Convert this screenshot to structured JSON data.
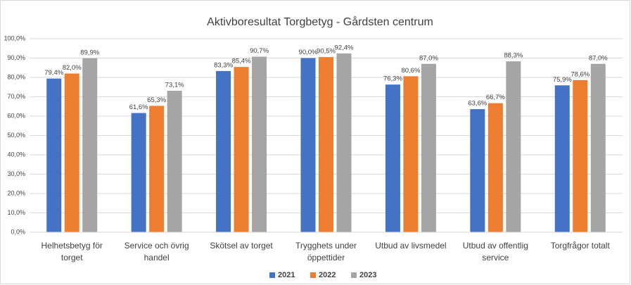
{
  "chart_data": {
    "type": "bar",
    "title": "Aktivboresultat Torgbetyg - Gårdsten centrum",
    "categories": [
      [
        "Helhetsbetyg för",
        "torget"
      ],
      [
        "Service och övrig",
        "handel"
      ],
      [
        "Skötsel av torget"
      ],
      [
        "Trygghets under",
        "öppettider"
      ],
      [
        "Utbud av livsmedel"
      ],
      [
        "Utbud av offentlig",
        "service"
      ],
      [
        "Torgfrågor totalt"
      ]
    ],
    "series": [
      {
        "name": "2021",
        "color": "#4472c4",
        "values": [
          79.4,
          61.6,
          83.3,
          90.0,
          76.3,
          63.6,
          75.9
        ],
        "value_labels": [
          "79,4%",
          "61,6%",
          "83,3%",
          "90,0%",
          "76,3%",
          "63,6%",
          "75,9%"
        ]
      },
      {
        "name": "2022",
        "color": "#ed7d31",
        "values": [
          82.0,
          65.3,
          85.4,
          90.5,
          80.6,
          66.7,
          78.6
        ],
        "value_labels": [
          "82,0%",
          "65,3%",
          "85,4%",
          "90,5%",
          "80,6%",
          "66,7%",
          "78,6%"
        ]
      },
      {
        "name": "2023",
        "color": "#a5a5a5",
        "values": [
          89.9,
          73.1,
          90.7,
          92.4,
          87.0,
          88.3,
          87.0
        ],
        "value_labels": [
          "89,9%",
          "73,1%",
          "90,7%",
          "92,4%",
          "87,0%",
          "88,3%",
          "87,0%"
        ]
      }
    ],
    "ylim": [
      0,
      100
    ],
    "yticks": [
      {
        "value": 0,
        "label": "0,0%"
      },
      {
        "value": 10,
        "label": "10,0%"
      },
      {
        "value": 20,
        "label": "20,0%"
      },
      {
        "value": 30,
        "label": "30,0%"
      },
      {
        "value": 40,
        "label": "40,0%"
      },
      {
        "value": 50,
        "label": "50,0%"
      },
      {
        "value": 60,
        "label": "60,0%"
      },
      {
        "value": 70,
        "label": "70,0%"
      },
      {
        "value": 80,
        "label": "80,0%"
      },
      {
        "value": 90,
        "label": "90,0%"
      },
      {
        "value": 100,
        "label": "100,0%"
      }
    ],
    "grid": true,
    "legend": "bottom"
  }
}
